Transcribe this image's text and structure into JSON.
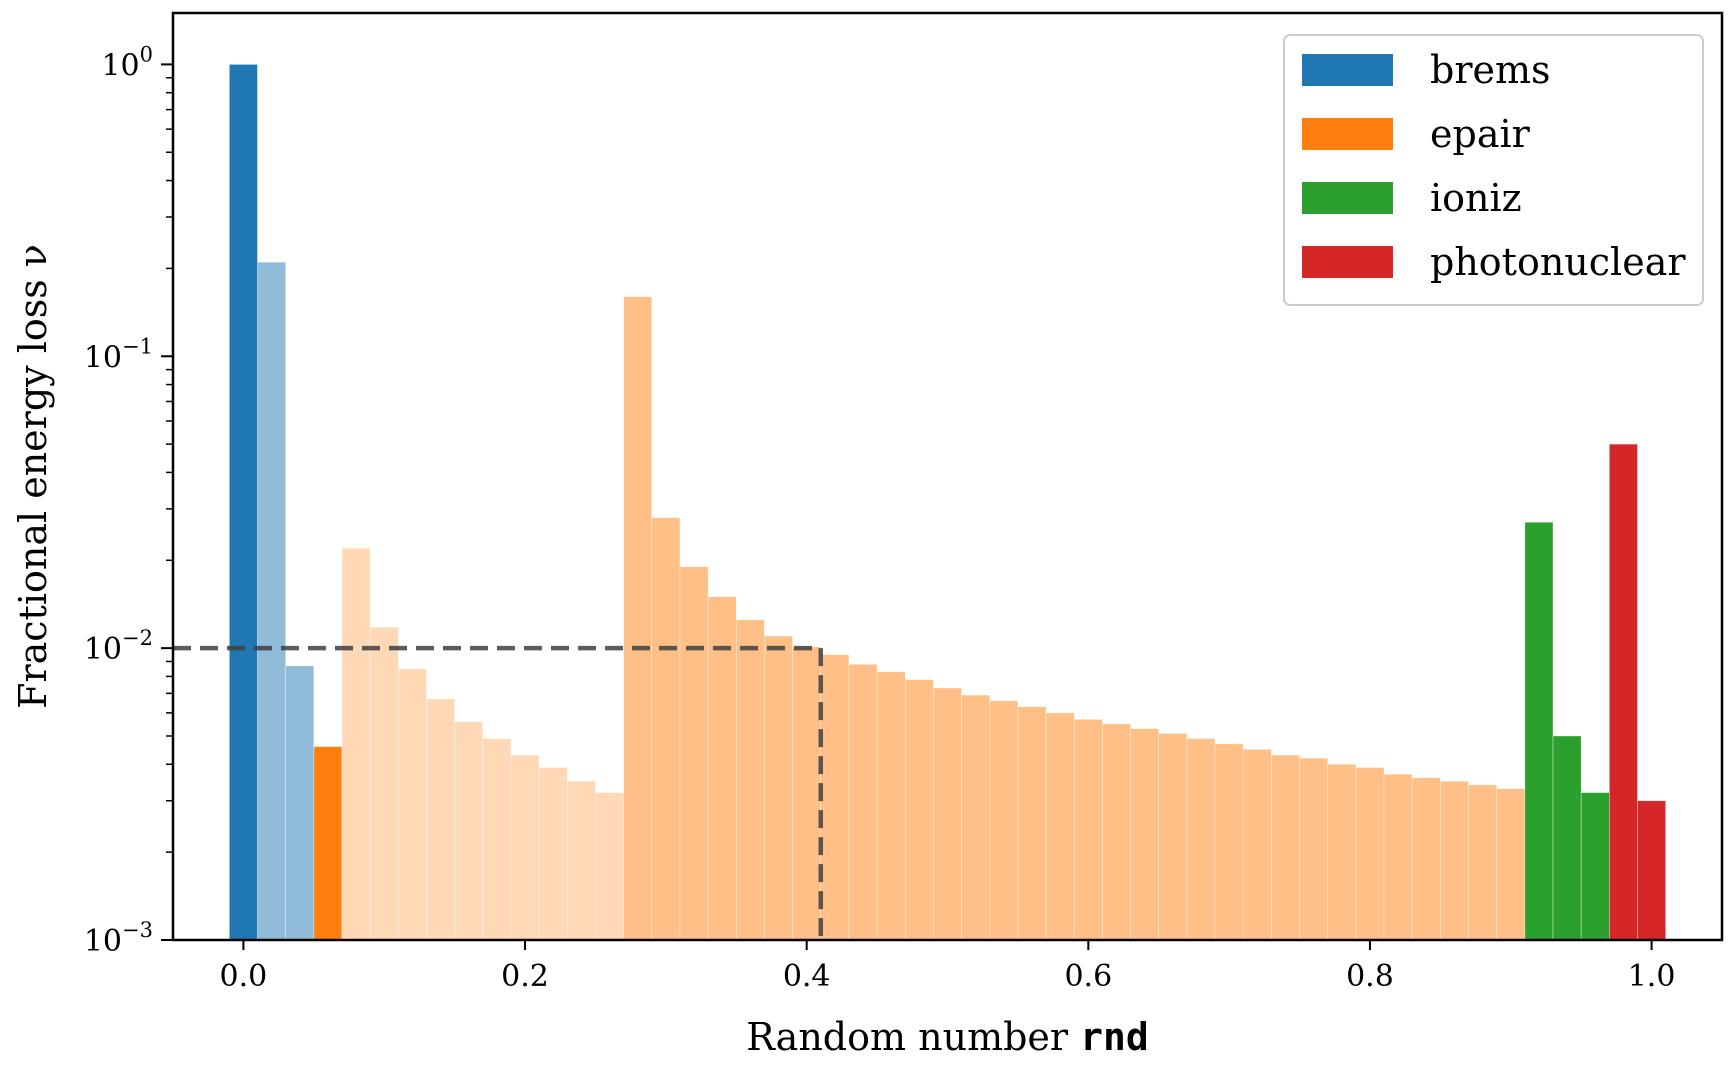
{
  "chart_data": {
    "type": "bar",
    "xlabel_prefix": "Random number ",
    "xlabel_code": "rnd",
    "ylabel": "Fractional energy loss ν",
    "y_scale": "log",
    "xlim": [
      -0.05,
      1.05
    ],
    "ylim": [
      0.001,
      1.5
    ],
    "x_ticks": [
      {
        "value": 0.0,
        "label": "0.0"
      },
      {
        "value": 0.2,
        "label": "0.2"
      },
      {
        "value": 0.4,
        "label": "0.4"
      },
      {
        "value": 0.6,
        "label": "0.6"
      },
      {
        "value": 0.8,
        "label": "0.8"
      },
      {
        "value": 1.0,
        "label": "1.0"
      }
    ],
    "y_ticks": [
      {
        "value": 1,
        "base": "10",
        "exp": "0"
      },
      {
        "value": 0.1,
        "base": "10",
        "exp": "−1"
      },
      {
        "value": 0.01,
        "base": "10",
        "exp": "−2"
      },
      {
        "value": 0.001,
        "base": "10",
        "exp": "−3"
      }
    ],
    "bin_width": 0.02,
    "legend": {
      "position": "top-right",
      "entries": [
        {
          "label": "brems",
          "color": "#1f77b4"
        },
        {
          "label": "epair",
          "color": "#ff7f0e"
        },
        {
          "label": "ioniz",
          "color": "#2ca02c"
        },
        {
          "label": "photonuclear",
          "color": "#d62728"
        }
      ]
    },
    "bars": [
      {
        "x": 0.0,
        "y": 1.0,
        "series": "brems",
        "shade": "full"
      },
      {
        "x": 0.02,
        "y": 0.21,
        "series": "brems",
        "shade": "light"
      },
      {
        "x": 0.04,
        "y": 0.0087,
        "series": "brems",
        "shade": "light"
      },
      {
        "x": 0.06,
        "y": 0.0046,
        "series": "epair",
        "shade": "full"
      },
      {
        "x": 0.08,
        "y": 0.022,
        "series": "epair",
        "shade": "pale"
      },
      {
        "x": 0.1,
        "y": 0.0118,
        "series": "epair",
        "shade": "pale"
      },
      {
        "x": 0.12,
        "y": 0.0085,
        "series": "epair",
        "shade": "pale"
      },
      {
        "x": 0.14,
        "y": 0.0067,
        "series": "epair",
        "shade": "pale"
      },
      {
        "x": 0.16,
        "y": 0.0056,
        "series": "epair",
        "shade": "pale"
      },
      {
        "x": 0.18,
        "y": 0.0049,
        "series": "epair",
        "shade": "pale"
      },
      {
        "x": 0.2,
        "y": 0.0043,
        "series": "epair",
        "shade": "pale"
      },
      {
        "x": 0.22,
        "y": 0.0039,
        "series": "epair",
        "shade": "pale"
      },
      {
        "x": 0.24,
        "y": 0.0035,
        "series": "epair",
        "shade": "pale"
      },
      {
        "x": 0.26,
        "y": 0.0032,
        "series": "epair",
        "shade": "pale"
      },
      {
        "x": 0.28,
        "y": 0.16,
        "series": "epair",
        "shade": "light"
      },
      {
        "x": 0.3,
        "y": 0.028,
        "series": "epair",
        "shade": "light"
      },
      {
        "x": 0.32,
        "y": 0.019,
        "series": "epair",
        "shade": "light"
      },
      {
        "x": 0.34,
        "y": 0.015,
        "series": "epair",
        "shade": "light"
      },
      {
        "x": 0.36,
        "y": 0.0125,
        "series": "epair",
        "shade": "light"
      },
      {
        "x": 0.38,
        "y": 0.011,
        "series": "epair",
        "shade": "light"
      },
      {
        "x": 0.4,
        "y": 0.0101,
        "series": "epair",
        "shade": "light"
      },
      {
        "x": 0.42,
        "y": 0.0095,
        "series": "epair",
        "shade": "light"
      },
      {
        "x": 0.44,
        "y": 0.0088,
        "series": "epair",
        "shade": "light"
      },
      {
        "x": 0.46,
        "y": 0.0083,
        "series": "epair",
        "shade": "light"
      },
      {
        "x": 0.48,
        "y": 0.0078,
        "series": "epair",
        "shade": "light"
      },
      {
        "x": 0.5,
        "y": 0.0073,
        "series": "epair",
        "shade": "light"
      },
      {
        "x": 0.52,
        "y": 0.0069,
        "series": "epair",
        "shade": "light"
      },
      {
        "x": 0.54,
        "y": 0.0066,
        "series": "epair",
        "shade": "light"
      },
      {
        "x": 0.56,
        "y": 0.0063,
        "series": "epair",
        "shade": "light"
      },
      {
        "x": 0.58,
        "y": 0.006,
        "series": "epair",
        "shade": "light"
      },
      {
        "x": 0.6,
        "y": 0.0057,
        "series": "epair",
        "shade": "light"
      },
      {
        "x": 0.62,
        "y": 0.0055,
        "series": "epair",
        "shade": "light"
      },
      {
        "x": 0.64,
        "y": 0.0053,
        "series": "epair",
        "shade": "light"
      },
      {
        "x": 0.66,
        "y": 0.0051,
        "series": "epair",
        "shade": "light"
      },
      {
        "x": 0.68,
        "y": 0.0049,
        "series": "epair",
        "shade": "light"
      },
      {
        "x": 0.7,
        "y": 0.0047,
        "series": "epair",
        "shade": "light"
      },
      {
        "x": 0.72,
        "y": 0.0045,
        "series": "epair",
        "shade": "light"
      },
      {
        "x": 0.74,
        "y": 0.0043,
        "series": "epair",
        "shade": "light"
      },
      {
        "x": 0.76,
        "y": 0.0042,
        "series": "epair",
        "shade": "light"
      },
      {
        "x": 0.78,
        "y": 0.004,
        "series": "epair",
        "shade": "light"
      },
      {
        "x": 0.8,
        "y": 0.0039,
        "series": "epair",
        "shade": "light"
      },
      {
        "x": 0.82,
        "y": 0.0037,
        "series": "epair",
        "shade": "light"
      },
      {
        "x": 0.84,
        "y": 0.0036,
        "series": "epair",
        "shade": "light"
      },
      {
        "x": 0.86,
        "y": 0.0035,
        "series": "epair",
        "shade": "light"
      },
      {
        "x": 0.88,
        "y": 0.0034,
        "series": "epair",
        "shade": "light"
      },
      {
        "x": 0.9,
        "y": 0.0033,
        "series": "epair",
        "shade": "light"
      },
      {
        "x": 0.92,
        "y": 0.027,
        "series": "ioniz",
        "shade": "full"
      },
      {
        "x": 0.94,
        "y": 0.005,
        "series": "ioniz",
        "shade": "full"
      },
      {
        "x": 0.96,
        "y": 0.0032,
        "series": "ioniz",
        "shade": "full"
      },
      {
        "x": 0.98,
        "y": 0.05,
        "series": "photonuclear",
        "shade": "full"
      },
      {
        "x": 1.0,
        "y": 0.003,
        "series": "photonuclear",
        "shade": "full"
      }
    ],
    "guide": {
      "x": 0.41,
      "y": 0.01,
      "color": "#404040",
      "style": "dashed"
    }
  }
}
